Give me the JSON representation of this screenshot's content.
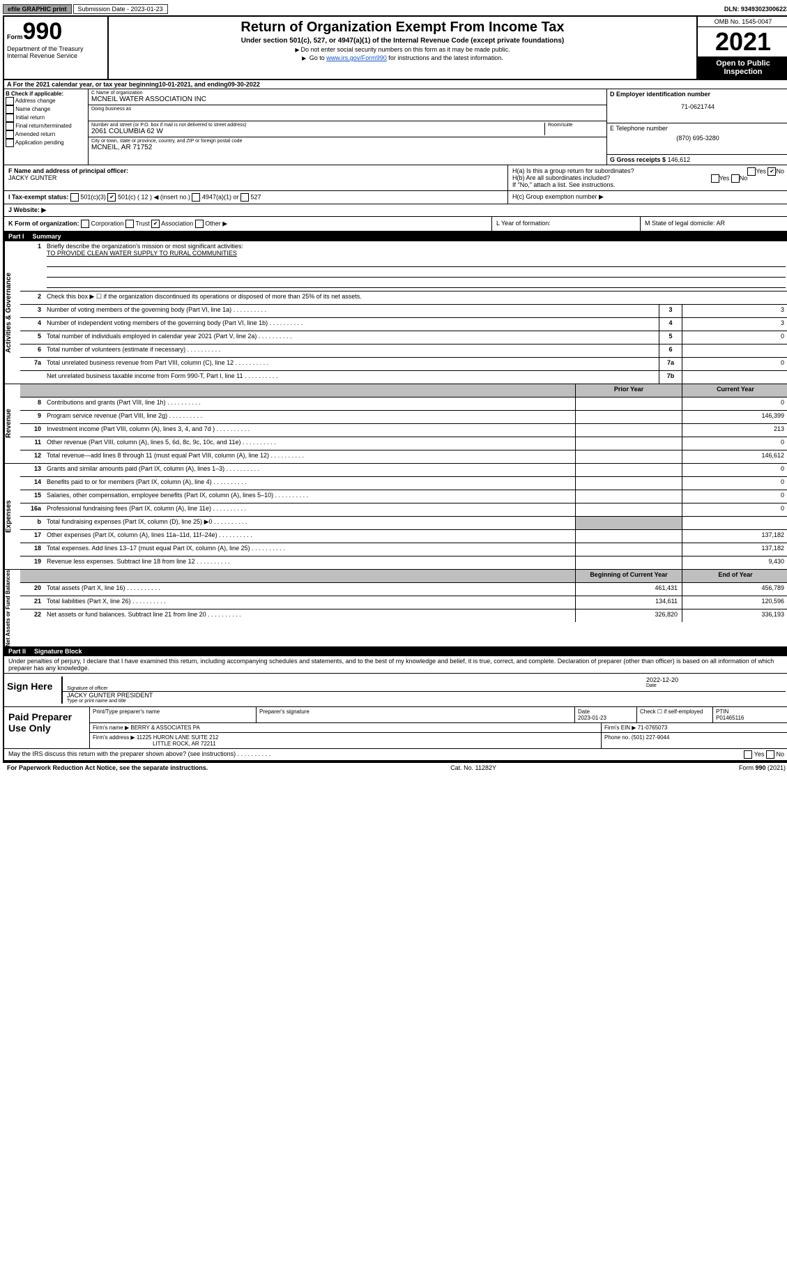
{
  "top": {
    "efile": "efile GRAPHIC print",
    "submission_label": "Submission Date - 2023-01-23",
    "dln": "DLN: 93493023006223"
  },
  "header": {
    "form_label": "Form",
    "form_number": "990",
    "dept": "Department of the Treasury",
    "irs": "Internal Revenue Service",
    "title": "Return of Organization Exempt From Income Tax",
    "subtitle": "Under section 501(c), 527, or 4947(a)(1) of the Internal Revenue Code (except private foundations)",
    "line1": "Do not enter social security numbers on this form as it may be made public.",
    "line2_pre": "Go to ",
    "line2_link": "www.irs.gov/Form990",
    "line2_post": " for instructions and the latest information.",
    "omb": "OMB No. 1545-0047",
    "year": "2021",
    "open_pub": "Open to Public Inspection"
  },
  "line_a": {
    "text_pre": "A For the 2021 calendar year, or tax year beginning ",
    "begin": "10-01-2021",
    "mid": " , and ending ",
    "end": "09-30-2022"
  },
  "section_b": {
    "header": "B Check if applicable:",
    "items": [
      "Address change",
      "Name change",
      "Initial return",
      "Final return/terminated",
      "Amended return",
      "Application pending"
    ],
    "c_label": "C Name of organization",
    "c_value": "MCNEIL WATER ASSOCIATION INC",
    "dba_label": "Doing business as",
    "addr_label": "Number and street (or P.O. box if mail is not delivered to street address)",
    "room_label": "Room/suite",
    "addr_value": "2061 COLUMBIA 62 W",
    "city_label": "City or town, state or province, country, and ZIP or foreign postal code",
    "city_value": "MCNEIL, AR  71752",
    "d_label": "D Employer identification number",
    "d_value": "71-0621744",
    "e_label": "E Telephone number",
    "e_value": "(870) 695-3280",
    "g_label": "G Gross receipts $",
    "g_value": "146,612"
  },
  "section_f": {
    "label": "F Name and address of principal officer:",
    "value": "JACKY GUNTER",
    "ha_label": "H(a)  Is this a group return for subordinates?",
    "ha_yes": "Yes",
    "ha_no": "No",
    "hb_label": "H(b)  Are all subordinates included?",
    "hb_yes": "Yes",
    "hb_no": "No",
    "hb_note": "If \"No,\" attach a list. See instructions.",
    "hc_label": "H(c)  Group exemption number ▶"
  },
  "section_i": {
    "label": "I  Tax-exempt status:",
    "opts": [
      "501(c)(3)",
      "501(c) ( 12 ) ◀ (insert no.)",
      "4947(a)(1) or",
      "527"
    ]
  },
  "section_j": {
    "label": "J  Website: ▶"
  },
  "section_k": {
    "label": "K Form of organization:",
    "opts": [
      "Corporation",
      "Trust",
      "Association",
      "Other ▶"
    ],
    "l_label": "L Year of formation:",
    "m_label": "M State of legal domicile: AR"
  },
  "part1": {
    "header": "Part I",
    "title": "Summary",
    "q1_label": "Briefly describe the organization's mission or most significant activities:",
    "q1_value": "TO PROVIDE CLEAN WATER SUPPLY TO RURAL COMMUNITIES",
    "q2": "Check this box ▶ ☐  if the organization discontinued its operations or disposed of more than 25% of its net assets.",
    "rows_gov": [
      {
        "n": "3",
        "label": "Number of voting members of the governing body (Part VI, line 1a)",
        "box": "3",
        "val": "3"
      },
      {
        "n": "4",
        "label": "Number of independent voting members of the governing body (Part VI, line 1b)",
        "box": "4",
        "val": "3"
      },
      {
        "n": "5",
        "label": "Total number of individuals employed in calendar year 2021 (Part V, line 2a)",
        "box": "5",
        "val": "0"
      },
      {
        "n": "6",
        "label": "Total number of volunteers (estimate if necessary)",
        "box": "6",
        "val": ""
      },
      {
        "n": "7a",
        "label": "Total unrelated business revenue from Part VIII, column (C), line 12",
        "box": "7a",
        "val": "0"
      },
      {
        "n": "",
        "label": "Net unrelated business taxable income from Form 990-T, Part I, line 11",
        "box": "7b",
        "val": ""
      }
    ],
    "col_headers": {
      "prior": "Prior Year",
      "curr": "Current Year"
    },
    "rows_rev": [
      {
        "n": "8",
        "label": "Contributions and grants (Part VIII, line 1h)",
        "prior": "",
        "curr": "0"
      },
      {
        "n": "9",
        "label": "Program service revenue (Part VIII, line 2g)",
        "prior": "",
        "curr": "146,399"
      },
      {
        "n": "10",
        "label": "Investment income (Part VIII, column (A), lines 3, 4, and 7d )",
        "prior": "",
        "curr": "213"
      },
      {
        "n": "11",
        "label": "Other revenue (Part VIII, column (A), lines 5, 6d, 8c, 9c, 10c, and 11e)",
        "prior": "",
        "curr": "0"
      },
      {
        "n": "12",
        "label": "Total revenue—add lines 8 through 11 (must equal Part VIII, column (A), line 12)",
        "prior": "",
        "curr": "146,612"
      }
    ],
    "rows_exp": [
      {
        "n": "13",
        "label": "Grants and similar amounts paid (Part IX, column (A), lines 1–3)",
        "prior": "",
        "curr": "0"
      },
      {
        "n": "14",
        "label": "Benefits paid to or for members (Part IX, column (A), line 4)",
        "prior": "",
        "curr": "0"
      },
      {
        "n": "15",
        "label": "Salaries, other compensation, employee benefits (Part IX, column (A), lines 5–10)",
        "prior": "",
        "curr": "0"
      },
      {
        "n": "16a",
        "label": "Professional fundraising fees (Part IX, column (A), line 11e)",
        "prior": "",
        "curr": "0"
      },
      {
        "n": "b",
        "label": "Total fundraising expenses (Part IX, column (D), line 25) ▶0",
        "prior": "shade",
        "curr": "shade"
      },
      {
        "n": "17",
        "label": "Other expenses (Part IX, column (A), lines 11a–11d, 11f–24e)",
        "prior": "",
        "curr": "137,182"
      },
      {
        "n": "18",
        "label": "Total expenses. Add lines 13–17 (must equal Part IX, column (A), line 25)",
        "prior": "",
        "curr": "137,182"
      },
      {
        "n": "19",
        "label": "Revenue less expenses. Subtract line 18 from line 12",
        "prior": "",
        "curr": "9,430"
      }
    ],
    "net_headers": {
      "begin": "Beginning of Current Year",
      "end": "End of Year"
    },
    "rows_net": [
      {
        "n": "20",
        "label": "Total assets (Part X, line 16)",
        "begin": "461,431",
        "end": "456,789"
      },
      {
        "n": "21",
        "label": "Total liabilities (Part X, line 26)",
        "begin": "134,611",
        "end": "120,596"
      },
      {
        "n": "22",
        "label": "Net assets or fund balances. Subtract line 21 from line 20",
        "begin": "326,820",
        "end": "336,193"
      }
    ],
    "vert_gov": "Activities & Governance",
    "vert_rev": "Revenue",
    "vert_exp": "Expenses",
    "vert_net": "Net Assets or Fund Balances"
  },
  "part2": {
    "header": "Part II",
    "title": "Signature Block",
    "declare": "Under penalties of perjury, I declare that I have examined this return, including accompanying schedules and statements, and to the best of my knowledge and belief, it is true, correct, and complete. Declaration of preparer (other than officer) is based on all information of which preparer has any knowledge.",
    "sign_here": "Sign Here",
    "sig_officer_lbl": "Signature of officer",
    "sig_date": "2022-12-20",
    "sig_date_lbl": "Date",
    "officer_name": "JACKY GUNTER  PRESIDENT",
    "officer_name_lbl": "Type or print name and title",
    "paid_prep": "Paid Preparer Use Only",
    "prep_name_lbl": "Print/Type preparer's name",
    "prep_sig_lbl": "Preparer's signature",
    "prep_date_lbl": "Date",
    "prep_date": "2023-01-23",
    "prep_check_lbl": "Check ☐ if self-employed",
    "ptin_lbl": "PTIN",
    "ptin": "P01465116",
    "firm_name_lbl": "Firm's name   ▶",
    "firm_name": "BERRY & ASSOCIATES PA",
    "firm_ein_lbl": "Firm's EIN ▶",
    "firm_ein": "71-0765073",
    "firm_addr_lbl": "Firm's address ▶",
    "firm_addr1": "11225 HURON LANE SUITE 212",
    "firm_addr2": "LITTLE ROCK, AR  72211",
    "firm_phone_lbl": "Phone no.",
    "firm_phone": "(501) 227-9044",
    "discuss": "May the IRS discuss this return with the preparer shown above? (see instructions)",
    "yes": "Yes",
    "no": "No"
  },
  "footer": {
    "left": "For Paperwork Reduction Act Notice, see the separate instructions.",
    "mid": "Cat. No. 11282Y",
    "right": "Form 990 (2021)"
  }
}
